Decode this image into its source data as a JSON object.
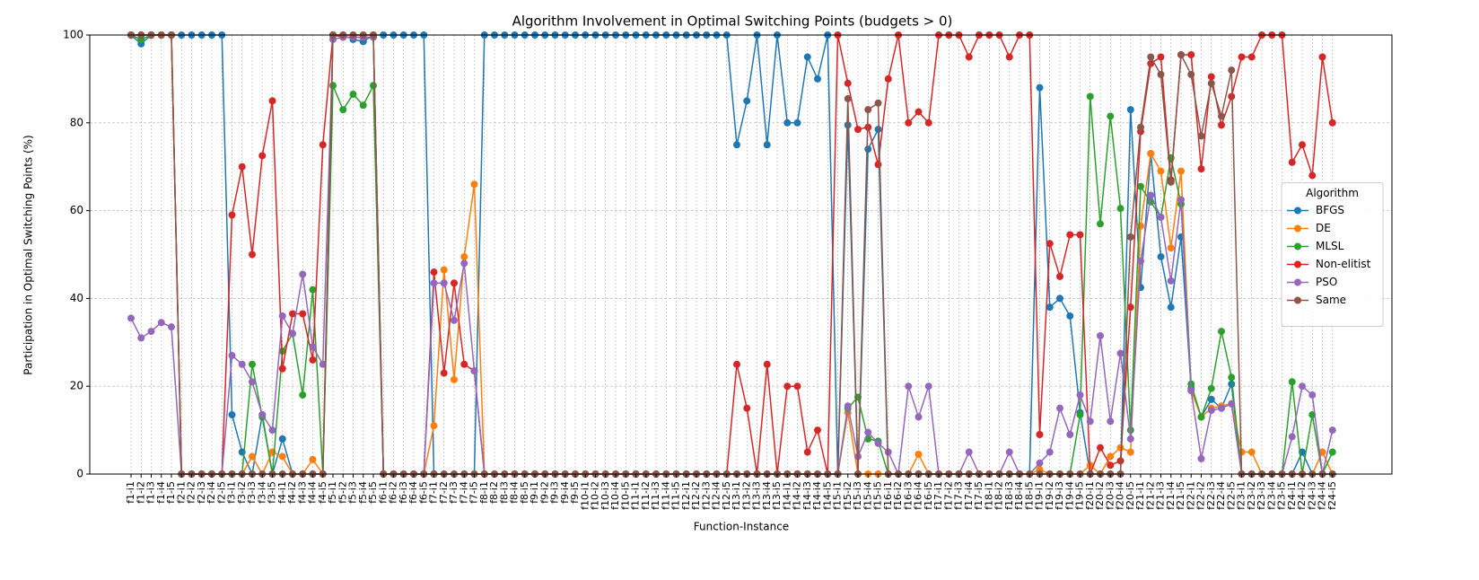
{
  "chart_data": {
    "type": "line",
    "title": "Algorithm Involvement in Optimal Switching Points (budgets > 0)",
    "xlabel": "Function-Instance",
    "ylabel": "Participation in Optimal Switching Points (%)",
    "legend_title": "Algorithm",
    "legend": "center right",
    "grid": true,
    "ylim": [
      0,
      100
    ],
    "yticks": [
      0,
      20,
      40,
      60,
      80,
      100
    ],
    "categories": [
      "f1-i1",
      "f1-i2",
      "f1-i3",
      "f1-i4",
      "f1-i5",
      "f2-i1",
      "f2-i2",
      "f2-i3",
      "f2-i4",
      "f2-i5",
      "f3-i1",
      "f3-i2",
      "f3-i3",
      "f3-i4",
      "f3-i5",
      "f4-i1",
      "f4-i2",
      "f4-i3",
      "f4-i4",
      "f4-i5",
      "f5-i1",
      "f5-i2",
      "f5-i3",
      "f5-i4",
      "f5-i5",
      "f6-i1",
      "f6-i2",
      "f6-i3",
      "f6-i4",
      "f6-i5",
      "f7-i1",
      "f7-i2",
      "f7-i3",
      "f7-i4",
      "f7-i5",
      "f8-i1",
      "f8-i2",
      "f8-i3",
      "f8-i4",
      "f8-i5",
      "f9-i1",
      "f9-i2",
      "f9-i3",
      "f9-i4",
      "f9-i5",
      "f10-i1",
      "f10-i2",
      "f10-i3",
      "f10-i4",
      "f10-i5",
      "f11-i1",
      "f11-i2",
      "f11-i3",
      "f11-i4",
      "f11-i5",
      "f12-i1",
      "f12-i2",
      "f12-i3",
      "f12-i4",
      "f12-i5",
      "f13-i1",
      "f13-i2",
      "f13-i3",
      "f13-i4",
      "f13-i5",
      "f14-i1",
      "f14-i2",
      "f14-i3",
      "f14-i4",
      "f14-i5",
      "f15-i1",
      "f15-i2",
      "f15-i3",
      "f15-i4",
      "f15-i5",
      "f16-i1",
      "f16-i2",
      "f16-i3",
      "f16-i4",
      "f16-i5",
      "f17-i1",
      "f17-i2",
      "f17-i3",
      "f17-i4",
      "f17-i5",
      "f18-i1",
      "f18-i2",
      "f18-i3",
      "f18-i4",
      "f18-i5",
      "f19-i1",
      "f19-i2",
      "f19-i3",
      "f19-i4",
      "f19-i5",
      "f20-i1",
      "f20-i2",
      "f20-i3",
      "f20-i4",
      "f20-i5",
      "f21-i1",
      "f21-i2",
      "f21-i3",
      "f21-i4",
      "f21-i5",
      "f22-i1",
      "f22-i2",
      "f22-i3",
      "f22-i4",
      "f22-i5",
      "f23-i1",
      "f23-i2",
      "f23-i3",
      "f23-i4",
      "f23-i5",
      "f24-i1",
      "f24-i2",
      "f24-i3",
      "f24-i4",
      "f24-i5"
    ],
    "series": [
      {
        "name": "BFGS",
        "color": "#1f77b4",
        "values": [
          100,
          98,
          100,
          100,
          100,
          100,
          100,
          100,
          100,
          100,
          13.5,
          5,
          0,
          13.5,
          0,
          8,
          0,
          0,
          0,
          0,
          100,
          100,
          99,
          98.5,
          100,
          100,
          100,
          100,
          100,
          100,
          0,
          0,
          0,
          0,
          0,
          100,
          100,
          100,
          100,
          100,
          100,
          100,
          100,
          100,
          100,
          100,
          100,
          100,
          100,
          100,
          100,
          100,
          100,
          100,
          100,
          100,
          100,
          100,
          100,
          100,
          75,
          85,
          100,
          75,
          100,
          80,
          80,
          95,
          90,
          100,
          0,
          79.5,
          0,
          74,
          78.5,
          0,
          0,
          0,
          0,
          0,
          0,
          0,
          0,
          0,
          0,
          0,
          0,
          0,
          0,
          0,
          88,
          38,
          40,
          36,
          14,
          0,
          0,
          0,
          0,
          83,
          42.5,
          73,
          49.5,
          38,
          54,
          19.5,
          13,
          17,
          15,
          20.5,
          0,
          0,
          0,
          0,
          0,
          0,
          5,
          0,
          0,
          0
        ]
      },
      {
        "name": "DE",
        "color": "#ff7f0e",
        "values": [
          100,
          100,
          100,
          100,
          100,
          0,
          0,
          0,
          0,
          0,
          0,
          0,
          4,
          0,
          5,
          4,
          0,
          0,
          3.3,
          0,
          100,
          100,
          100,
          100,
          100,
          0,
          0,
          0,
          0,
          0,
          11,
          46.5,
          21.5,
          49.5,
          66,
          0,
          0,
          0,
          0,
          0,
          0,
          0,
          0,
          0,
          0,
          0,
          0,
          0,
          0,
          0,
          0,
          0,
          0,
          0,
          0,
          0,
          0,
          0,
          0,
          0,
          0,
          0,
          0,
          0,
          0,
          0,
          0,
          0,
          0,
          0,
          0,
          14,
          0,
          0,
          0,
          0,
          0,
          0,
          4.5,
          0,
          0,
          0,
          0,
          0,
          0,
          0,
          0,
          0,
          0,
          0,
          1,
          0,
          0,
          0,
          0,
          2,
          0,
          4,
          6,
          5,
          56.5,
          73,
          69,
          51.5,
          69,
          19,
          13,
          15,
          15.5,
          16,
          5,
          5,
          0,
          0,
          0,
          0,
          0,
          0,
          5,
          0
        ]
      },
      {
        "name": "MLSL",
        "color": "#2ca02c",
        "values": [
          100,
          99,
          100,
          100,
          100,
          0,
          0,
          0,
          0,
          0,
          0,
          0,
          25,
          13,
          0,
          28,
          32,
          18,
          42,
          0,
          88.5,
          83,
          86.5,
          84,
          88.5,
          0,
          0,
          0,
          0,
          0,
          0,
          0,
          0,
          0,
          0,
          0,
          0,
          0,
          0,
          0,
          0,
          0,
          0,
          0,
          0,
          0,
          0,
          0,
          0,
          0,
          0,
          0,
          0,
          0,
          0,
          0,
          0,
          0,
          0,
          0,
          0,
          0,
          0,
          0,
          0,
          0,
          0,
          0,
          0,
          0,
          0,
          15,
          17.5,
          8,
          7.5,
          0,
          0,
          0,
          0,
          0,
          0,
          0,
          0,
          0,
          0,
          0,
          0,
          0,
          0,
          0,
          0,
          0,
          0,
          0,
          13.5,
          86,
          57,
          81.5,
          60.5,
          10,
          65.5,
          62,
          58.5,
          72,
          61.5,
          20.5,
          13,
          19.5,
          32.5,
          22,
          0,
          0,
          0,
          0,
          0,
          21,
          0,
          13.5,
          0,
          5
        ]
      },
      {
        "name": "Non-elitist",
        "color": "#d62728",
        "values": [
          100,
          100,
          100,
          100,
          100,
          0,
          0,
          0,
          0,
          0,
          59,
          70,
          50,
          72.5,
          85,
          24,
          36.5,
          36.5,
          26,
          75,
          100,
          99.5,
          99.5,
          99.5,
          99.5,
          0,
          0,
          0,
          0,
          0,
          46,
          23,
          43.5,
          25,
          23.5,
          0,
          0,
          0,
          0,
          0,
          0,
          0,
          0,
          0,
          0,
          0,
          0,
          0,
          0,
          0,
          0,
          0,
          0,
          0,
          0,
          0,
          0,
          0,
          0,
          0,
          25,
          15,
          0,
          25,
          0,
          20,
          20,
          5,
          10,
          0,
          100,
          89,
          78.5,
          79,
          70.5,
          90,
          100,
          80,
          82.5,
          80,
          100,
          100,
          100,
          95,
          100,
          100,
          100,
          95,
          100,
          100,
          9,
          52.5,
          45,
          54.5,
          54.5,
          0,
          6,
          2,
          3,
          38,
          78,
          93.5,
          95,
          67,
          95.5,
          95.5,
          69.5,
          90.5,
          79.5,
          86,
          95,
          95,
          100,
          100,
          100,
          71,
          75,
          68,
          95,
          80
        ]
      },
      {
        "name": "PSO",
        "color": "#9467bd",
        "values": [
          35.5,
          31,
          32.5,
          34.5,
          33.5,
          0,
          0,
          0,
          0,
          0,
          27,
          25,
          21,
          13.5,
          10,
          36,
          32,
          45.5,
          29,
          25,
          99,
          99.5,
          99.5,
          99.5,
          99.5,
          0,
          0,
          0,
          0,
          0,
          43.5,
          43.5,
          35,
          48,
          23.5,
          0,
          0,
          0,
          0,
          0,
          0,
          0,
          0,
          0,
          0,
          0,
          0,
          0,
          0,
          0,
          0,
          0,
          0,
          0,
          0,
          0,
          0,
          0,
          0,
          0,
          0,
          0,
          0,
          0,
          0,
          0,
          0,
          0,
          0,
          0,
          0,
          15.5,
          4,
          9.5,
          7,
          5,
          0,
          20,
          13,
          20,
          0,
          0,
          0,
          5,
          0,
          0,
          0,
          5,
          0,
          0,
          2.5,
          5,
          15,
          9,
          18,
          12,
          31.5,
          12,
          27.5,
          8,
          48.5,
          63.5,
          58.5,
          44,
          62.5,
          19,
          3.5,
          14.5,
          15,
          16,
          0,
          0,
          0,
          0,
          0,
          8.5,
          20,
          18,
          0,
          10
        ]
      },
      {
        "name": "Same",
        "color": "#8c564b",
        "values": [
          100,
          100,
          100,
          100,
          100,
          0,
          0,
          0,
          0,
          0,
          0,
          0,
          0,
          0,
          0,
          0,
          0,
          0,
          0,
          0,
          100,
          100,
          100,
          100,
          100,
          0,
          0,
          0,
          0,
          0,
          0,
          0,
          0,
          0,
          0,
          0,
          0,
          0,
          0,
          0,
          0,
          0,
          0,
          0,
          0,
          0,
          0,
          0,
          0,
          0,
          0,
          0,
          0,
          0,
          0,
          0,
          0,
          0,
          0,
          0,
          0,
          0,
          0,
          0,
          0,
          0,
          0,
          0,
          0,
          0,
          0,
          85.5,
          0,
          83,
          84.5,
          0,
          0,
          0,
          0,
          0,
          0,
          0,
          0,
          0,
          0,
          0,
          0,
          0,
          0,
          0,
          0,
          0,
          0,
          0,
          0,
          0,
          0,
          0,
          0,
          54,
          79,
          95,
          91,
          66.5,
          95.5,
          91,
          77,
          89,
          81.5,
          92,
          0,
          0,
          0,
          0,
          0,
          0,
          0,
          0,
          0,
          0
        ]
      }
    ]
  }
}
